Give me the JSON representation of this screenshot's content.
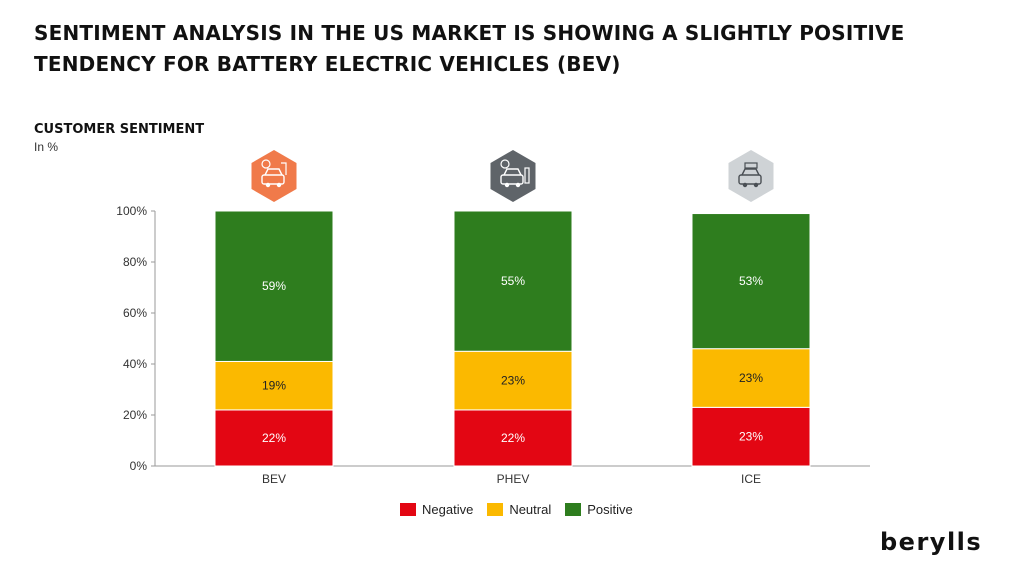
{
  "header": {
    "title": "SENTIMENT ANALYSIS IN THE US MARKET IS SHOWING A SLIGHTLY POSITIVE TENDENCY FOR BATTERY ELECTRIC VEHICLES (BEV)",
    "chart_subtitle": "CUSTOMER SENTIMENT",
    "unit_label": "In %"
  },
  "brand": {
    "logo_text": "berylls"
  },
  "colors": {
    "negative": "#e30613",
    "neutral": "#fbb900",
    "positive": "#2e7d1e",
    "icon_bev": "#f07a4a",
    "icon_phev": "#5f6469",
    "icon_ice": "#cfd3d6"
  },
  "icons": [
    "car-charging-icon",
    "hybrid-car-fuel-icon",
    "engine-icon"
  ],
  "chart_data": {
    "type": "bar",
    "stacked": true,
    "categories": [
      "BEV",
      "PHEV",
      "ICE"
    ],
    "series": [
      {
        "name": "Negative",
        "values": [
          22,
          22,
          23
        ],
        "labels": [
          "22%",
          "22%",
          "23%"
        ]
      },
      {
        "name": "Neutral",
        "values": [
          19,
          23,
          23
        ],
        "labels": [
          "19%",
          "23%",
          "23%"
        ]
      },
      {
        "name": "Positive",
        "values": [
          59,
          55,
          53
        ],
        "labels": [
          "59%",
          "55%",
          "53%"
        ]
      }
    ],
    "ylim": [
      0,
      100
    ],
    "yticks": [
      "0%",
      "20%",
      "40%",
      "60%",
      "80%",
      "100%"
    ],
    "legend_position": "bottom",
    "grid": false
  }
}
